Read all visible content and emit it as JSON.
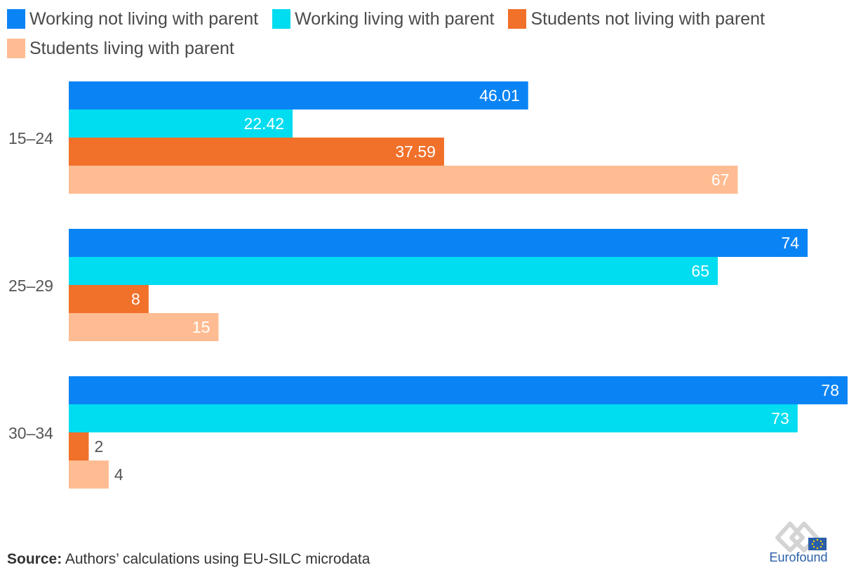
{
  "chart_data": {
    "type": "bar",
    "orientation": "horizontal",
    "categories": [
      "15–24",
      "25–29",
      "30–34"
    ],
    "series": [
      {
        "name": "Working not living with parent",
        "color": "#0a84f5",
        "values": [
          "46.01",
          "74",
          "78"
        ]
      },
      {
        "name": "Working living with parent",
        "color": "#00dcf0",
        "values": [
          "22.42",
          "65",
          "73"
        ]
      },
      {
        "name": "Students not living with parent",
        "color": "#f1702a",
        "values": [
          "37.59",
          "8",
          "2"
        ]
      },
      {
        "name": "Students living with parent",
        "color": "#ffbc92",
        "values": [
          "67",
          "15",
          "4"
        ]
      }
    ],
    "xlim": [
      0,
      78
    ],
    "grid": false,
    "legend_position": "top-left",
    "data_labels": "inside-end"
  },
  "footer": {
    "source_label": "Source:",
    "source_text": " Authors’ calculations using EU-SILC microdata"
  },
  "logo": {
    "text": "Eurofound",
    "color": "#2a5ea8"
  }
}
